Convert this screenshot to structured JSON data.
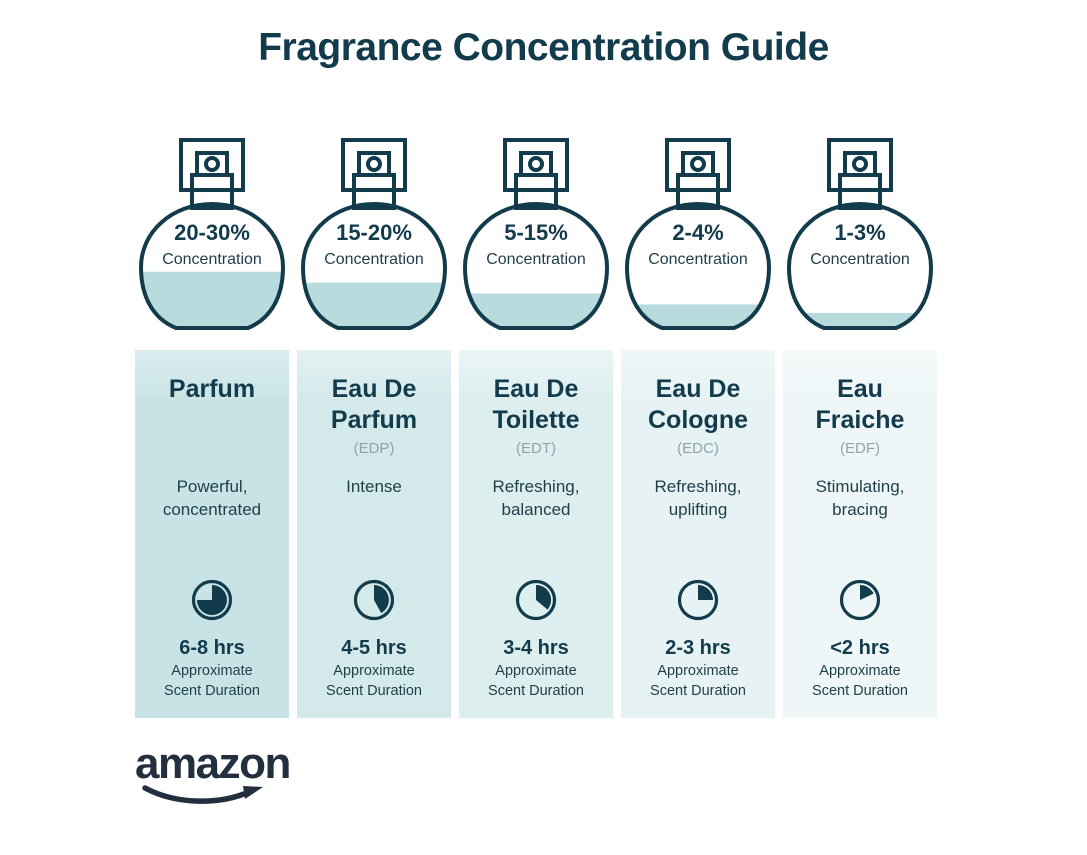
{
  "title": "Fragrance Concentration Guide",
  "brand": {
    "logo_text": "amazon"
  },
  "shared": {
    "concentration_label": "Concentration",
    "duration_note_line1": "Approximate",
    "duration_note_line2": "Scent Duration"
  },
  "colors": {
    "ink": "#123B4C",
    "liquid": "#B8DBDE",
    "text_dark": "#1F3E49",
    "abbr_gray": "#91A2AA",
    "logo": "#232F3E",
    "column_bgs": [
      "#C8E3E5",
      "#D3E9EA",
      "#DDEEEF",
      "#E6F2F3",
      "#EEF6F7"
    ]
  },
  "columns": [
    {
      "concentration": "20-30%",
      "fill_percent": 44,
      "name": "Parfum",
      "abbr": "",
      "desc": "Powerful, concentrated",
      "clock_percent": 75,
      "duration": "6-8 hrs"
    },
    {
      "concentration": "15-20%",
      "fill_percent": 35,
      "name": "Eau De Parfum",
      "abbr": "(EDP)",
      "desc": "Intense",
      "clock_percent": 42,
      "duration": "4-5 hrs"
    },
    {
      "concentration": "5-15%",
      "fill_percent": 26,
      "name": "Eau De Toilette",
      "abbr": "(EDT)",
      "desc": "Refreshing, balanced",
      "clock_percent": 36,
      "duration": "3-4 hrs"
    },
    {
      "concentration": "2-4%",
      "fill_percent": 17,
      "name": "Eau De Cologne",
      "abbr": "(EDC)",
      "desc": "Refreshing, uplifting",
      "clock_percent": 25,
      "duration": "2-3 hrs"
    },
    {
      "concentration": "1-3%",
      "fill_percent": 10,
      "name": "Eau Fraiche",
      "abbr": "(EDF)",
      "desc": "Stimulating, bracing",
      "clock_percent": 18,
      "duration": "<2 hrs"
    }
  ]
}
